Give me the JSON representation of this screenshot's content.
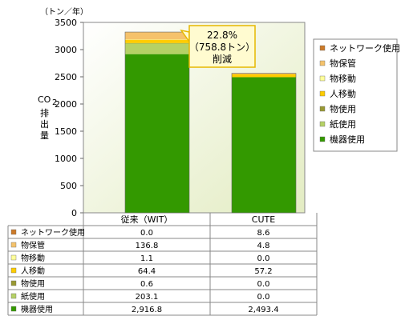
{
  "chart_data": {
    "type": "bar",
    "stacked": true,
    "unit": "（トン／年）",
    "ylabel_lines": [
      "CO",
      "2",
      "排",
      "出",
      "量"
    ],
    "ylim": [
      0,
      3500
    ],
    "yticks": [
      0,
      500,
      1000,
      1500,
      2000,
      2500,
      3000,
      3500
    ],
    "categories": [
      "従来（WIT）",
      "CUTE"
    ],
    "series": [
      {
        "name": "機器使用",
        "color": "#339900",
        "values": [
          2916.8,
          2493.4
        ],
        "labels": [
          "2,916.8",
          "2,493.4"
        ]
      },
      {
        "name": "紙使用",
        "color": "#b5d165",
        "values": [
          203.1,
          0.0
        ],
        "labels": [
          "203.1",
          "0.0"
        ]
      },
      {
        "name": "物使用",
        "color": "#999933",
        "values": [
          0.6,
          0.0
        ],
        "labels": [
          "0.6",
          "0.0"
        ]
      },
      {
        "name": "人移動",
        "color": "#ffcc00",
        "values": [
          64.4,
          57.2
        ],
        "labels": [
          "64.4",
          "57.2"
        ]
      },
      {
        "name": "物移動",
        "color": "#ffff99",
        "values": [
          1.1,
          0.0
        ],
        "labels": [
          "1.1",
          "0.0"
        ]
      },
      {
        "name": "物保管",
        "color": "#f5c26b",
        "values": [
          136.8,
          4.8
        ],
        "labels": [
          "136.8",
          "4.8"
        ]
      },
      {
        "name": "ネットワーク使用",
        "color": "#cc7a29",
        "values": [
          0.0,
          8.6
        ],
        "labels": [
          "0.0",
          "8.6"
        ]
      }
    ],
    "annotation": {
      "lines": [
        "22.8%",
        "（758.8トン）",
        "削減"
      ]
    },
    "grid": false,
    "legend_position": "right",
    "plot_background": "#eef3d6"
  }
}
